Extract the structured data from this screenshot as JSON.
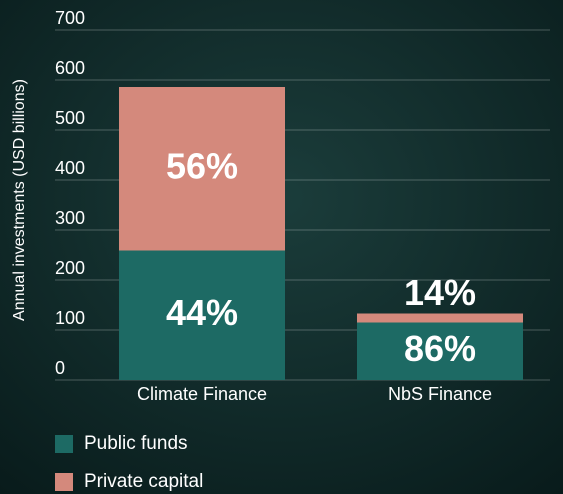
{
  "chart_data": {
    "type": "stacked_bar",
    "y_label": "Annual investments (USD billions)",
    "categories": [
      "Climate Finance",
      "NbS Finance"
    ],
    "series": [
      {
        "name": "Public funds",
        "color": "#1d6a64",
        "values": [
          259,
          115
        ],
        "share_values": [
          44,
          86
        ],
        "share_labels": [
          "44%",
          "86%"
        ]
      },
      {
        "name": "Private capital",
        "color": "#d4897c",
        "values": [
          327,
          18
        ],
        "share_values": [
          56,
          14
        ],
        "share_labels": [
          "56%",
          "14%"
        ]
      }
    ],
    "ylim": [
      0,
      700
    ],
    "yticks": [
      0,
      100,
      200,
      300,
      400,
      500,
      600,
      700
    ],
    "grid": true,
    "legend": "bottom-left"
  }
}
